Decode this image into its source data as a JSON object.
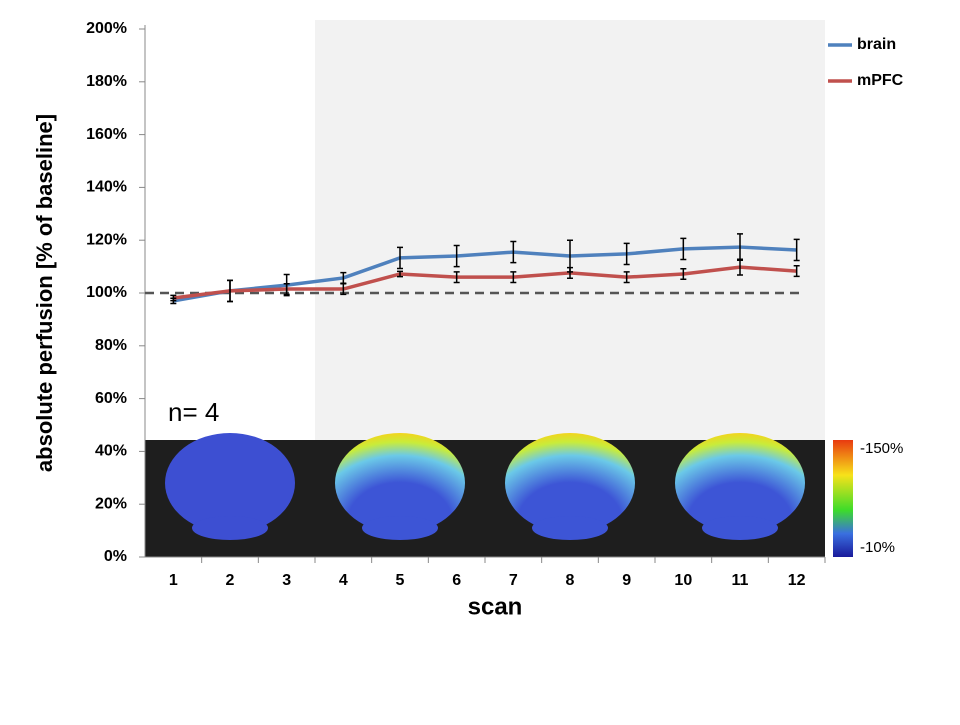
{
  "chart_data": {
    "type": "line",
    "y_label": "absolute perfusion [% of baseline]",
    "x_label": "scan",
    "categories": [
      "1",
      "2",
      "3",
      "4",
      "5",
      "6",
      "7",
      "8",
      "9",
      "10",
      "11",
      "12"
    ],
    "series": [
      {
        "name": "brain",
        "color": "#4f81bd",
        "values": [
          97.0,
          100.8,
          103.0,
          105.7,
          113.3,
          114.0,
          115.5,
          114.0,
          114.8,
          116.7,
          117.4,
          116.3
        ],
        "errors": [
          1,
          4,
          4,
          2,
          4,
          4,
          4,
          6,
          4,
          4,
          5,
          4
        ]
      },
      {
        "name": "mPFC",
        "color": "#c0504d",
        "values": [
          98.1,
          100.8,
          101.5,
          101.5,
          107.2,
          106.0,
          106.0,
          107.6,
          106.0,
          107.2,
          109.8,
          108.3
        ],
        "errors": [
          1,
          4,
          2,
          2,
          1,
          2,
          2,
          2,
          2,
          2,
          3,
          2
        ]
      }
    ],
    "reference_line": 100,
    "annotation": "n= 4",
    "colorbar_labels": [
      "-150%",
      "-10%"
    ],
    "ylim": [
      0,
      200
    ],
    "yticks": [
      {
        "value": 0,
        "label": "0%"
      },
      {
        "value": 20,
        "label": "20%"
      },
      {
        "value": 40,
        "label": "40%"
      },
      {
        "value": 60,
        "label": "60%"
      },
      {
        "value": 80,
        "label": "80%"
      },
      {
        "value": 100,
        "label": "100%"
      },
      {
        "value": 120,
        "label": "120%"
      },
      {
        "value": 140,
        "label": "140%"
      },
      {
        "value": 160,
        "label": "160%"
      },
      {
        "value": 180,
        "label": "180%"
      },
      {
        "value": 200,
        "label": "200%"
      }
    ],
    "grid": false,
    "legend": "top-right"
  }
}
